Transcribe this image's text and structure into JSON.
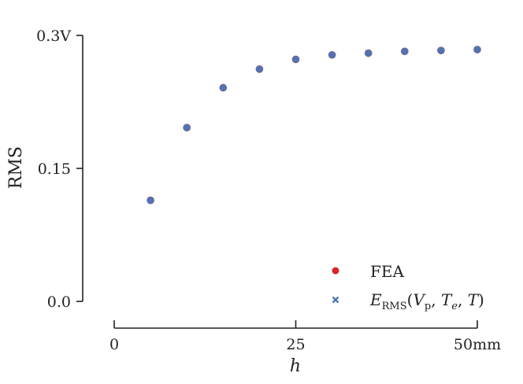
{
  "chart_data": {
    "type": "scatter",
    "xlabel": "h",
    "ylabel": "RMS",
    "xlim": [
      0,
      50
    ],
    "ylim": [
      0,
      0.3
    ],
    "x_ticks": [
      {
        "value": 0,
        "label": "0"
      },
      {
        "value": 25,
        "label": "25"
      },
      {
        "value": 50,
        "label": "50mm"
      }
    ],
    "y_ticks": [
      {
        "value": 0,
        "label": "0.0"
      },
      {
        "value": 0.15,
        "label": "0.15"
      },
      {
        "value": 0.3,
        "label": "0.3V"
      }
    ],
    "grid": false,
    "legend_position": "bottom-right",
    "series": [
      {
        "name": "FEA",
        "marker": "circle",
        "color": "#d62728",
        "x": [
          5,
          10,
          15,
          20,
          25,
          30,
          35,
          40,
          45,
          50
        ],
        "y": [
          0.114,
          0.196,
          0.241,
          0.262,
          0.273,
          0.278,
          0.28,
          0.282,
          0.283,
          0.284
        ]
      },
      {
        "name": "E_RMS(V_p, T_e, T)",
        "marker": "cross",
        "color": "#4a78b5",
        "x": [
          5,
          10,
          15,
          20,
          25,
          30,
          35,
          40,
          45,
          50
        ],
        "y": [
          0.114,
          0.196,
          0.241,
          0.262,
          0.273,
          0.278,
          0.28,
          0.282,
          0.283,
          0.284
        ]
      }
    ],
    "marker_fill": "#5a6eae"
  }
}
